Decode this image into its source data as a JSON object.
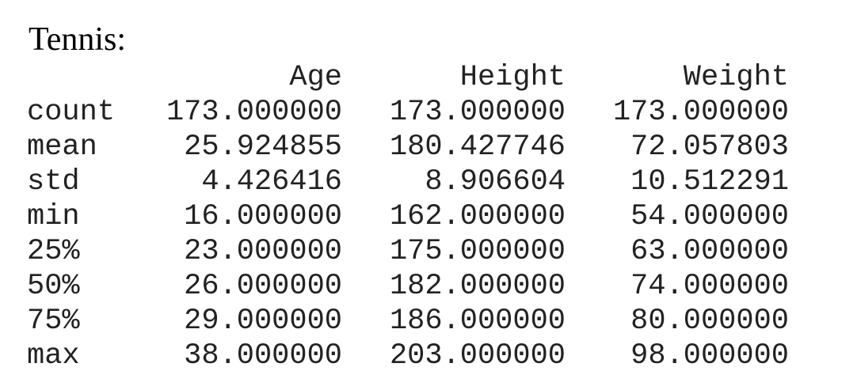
{
  "title": "Tennis:",
  "columns": [
    "Age",
    "Height",
    "Weight"
  ],
  "rows": [
    {
      "label": "count",
      "values": [
        "173.000000",
        "173.000000",
        "173.000000"
      ]
    },
    {
      "label": "mean",
      "values": [
        "25.924855",
        "180.427746",
        "72.057803"
      ]
    },
    {
      "label": "std",
      "values": [
        "4.426416",
        "8.906604",
        "10.512291"
      ]
    },
    {
      "label": "min",
      "values": [
        "16.000000",
        "162.000000",
        "54.000000"
      ]
    },
    {
      "label": "25%",
      "values": [
        "23.000000",
        "175.000000",
        "63.000000"
      ]
    },
    {
      "label": "50%",
      "values": [
        "26.000000",
        "182.000000",
        "74.000000"
      ]
    },
    {
      "label": "75%",
      "values": [
        "29.000000",
        "186.000000",
        "80.000000"
      ]
    },
    {
      "label": "max",
      "values": [
        "38.000000",
        "203.000000",
        "98.000000"
      ]
    }
  ]
}
